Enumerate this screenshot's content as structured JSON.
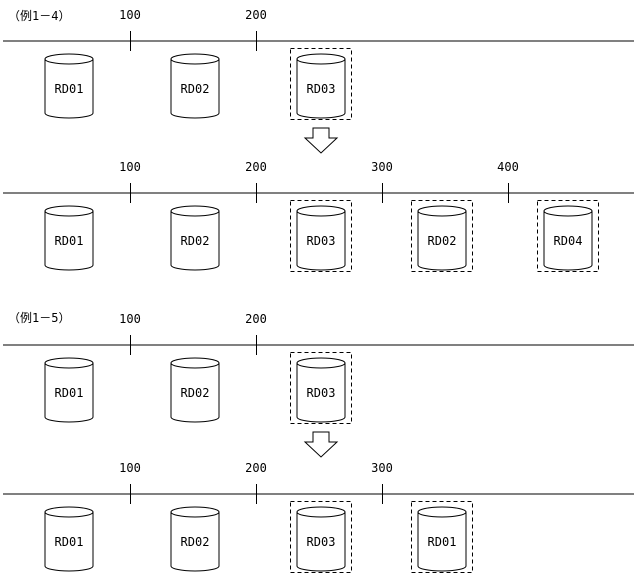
{
  "examples": [
    {
      "label": "（例1－4）",
      "panels": [
        {
          "ticks": [
            "100",
            "200"
          ],
          "disks": [
            {
              "name": "RD01",
              "highlighted": false
            },
            {
              "name": "RD02",
              "highlighted": false
            },
            {
              "name": "RD03",
              "highlighted": true
            }
          ]
        },
        {
          "ticks": [
            "100",
            "200",
            "300",
            "400"
          ],
          "disks": [
            {
              "name": "RD01",
              "highlighted": false
            },
            {
              "name": "RD02",
              "highlighted": false
            },
            {
              "name": "RD03",
              "highlighted": true
            },
            {
              "name": "RD02",
              "highlighted": true
            },
            {
              "name": "RD04",
              "highlighted": true
            }
          ]
        }
      ]
    },
    {
      "label": "（例1－5）",
      "panels": [
        {
          "ticks": [
            "100",
            "200"
          ],
          "disks": [
            {
              "name": "RD01",
              "highlighted": false
            },
            {
              "name": "RD02",
              "highlighted": false
            },
            {
              "name": "RD03",
              "highlighted": true
            }
          ]
        },
        {
          "ticks": [
            "100",
            "200",
            "300"
          ],
          "disks": [
            {
              "name": "RD01",
              "highlighted": false
            },
            {
              "name": "RD02",
              "highlighted": false
            },
            {
              "name": "RD03",
              "highlighted": true
            },
            {
              "name": "RD01",
              "highlighted": true
            }
          ]
        }
      ]
    }
  ]
}
